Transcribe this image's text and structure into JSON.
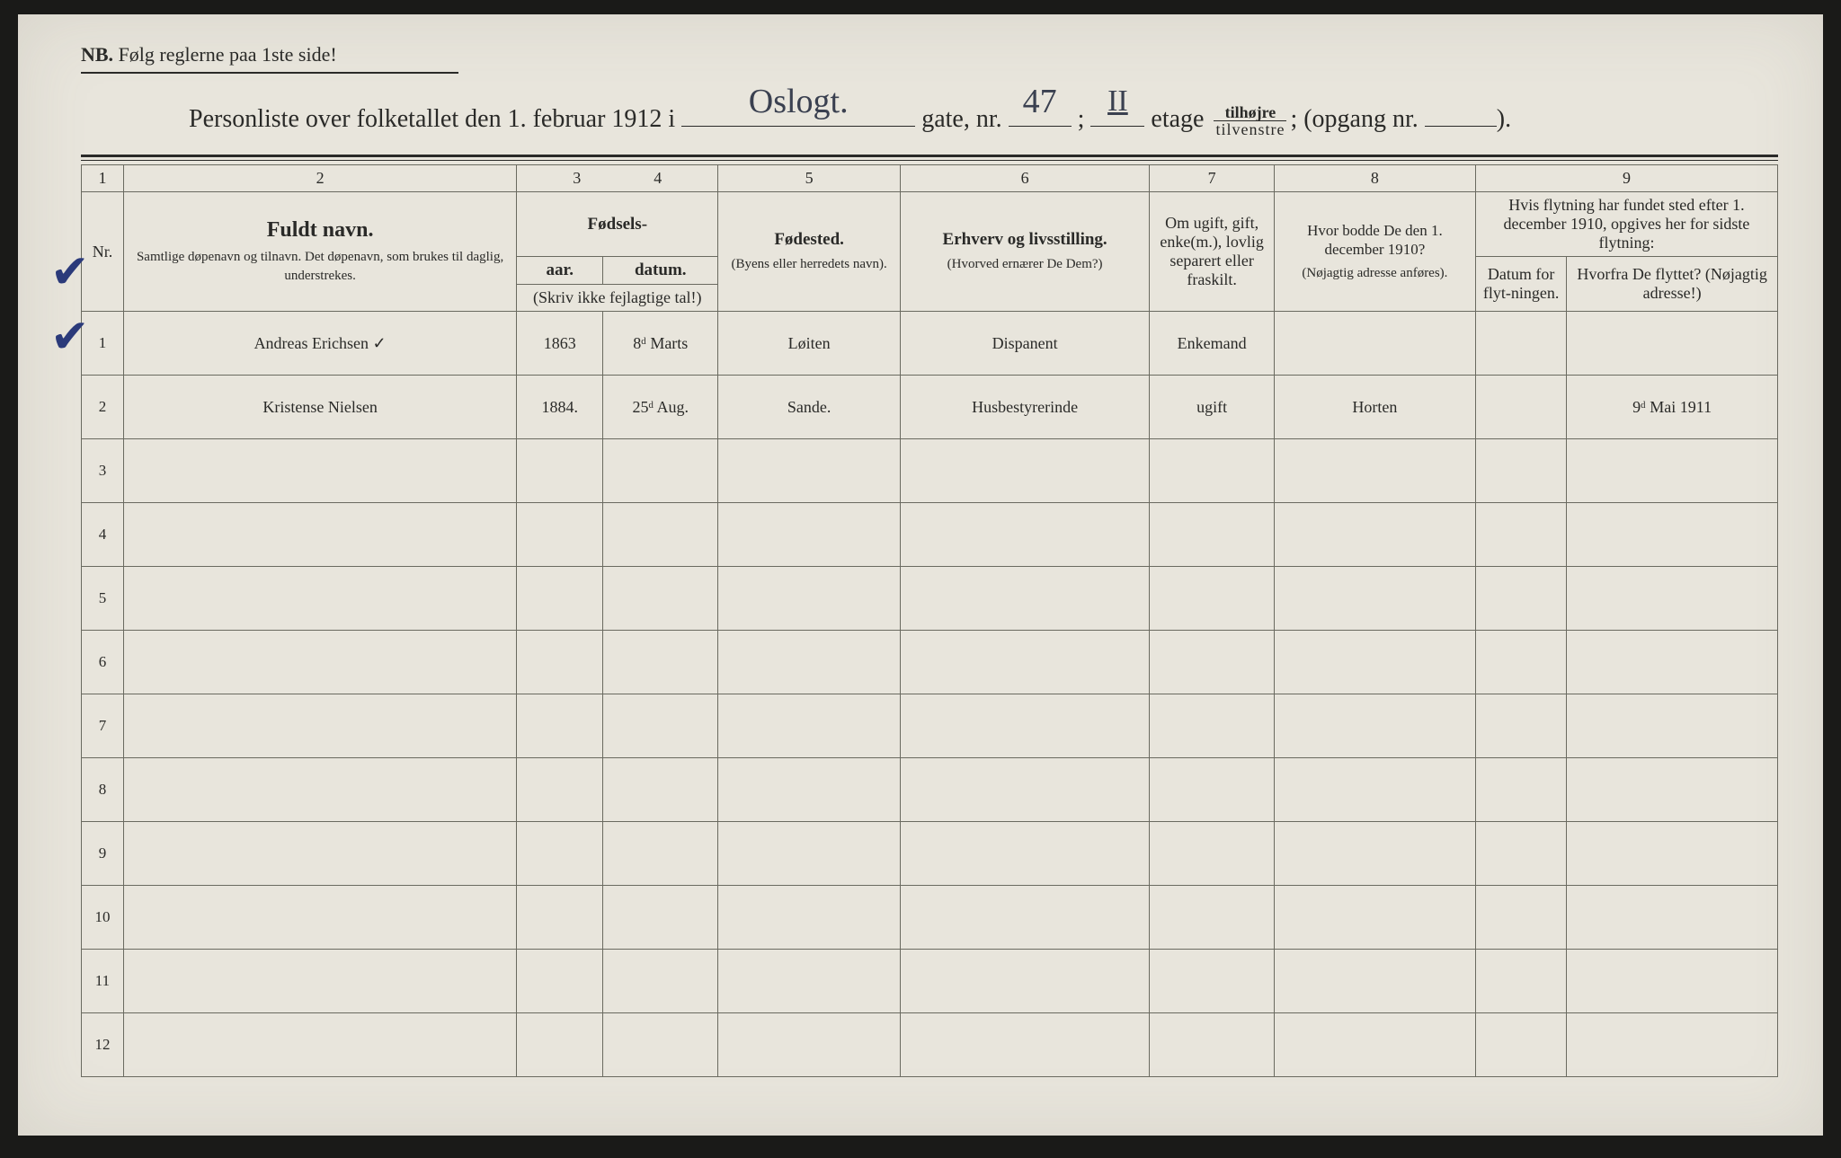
{
  "nb": {
    "prefix": "NB.",
    "text": "Følg reglerne paa 1ste side!"
  },
  "title": {
    "lead": "Personliste over folketallet den 1. februar 1912 i",
    "street_hand": "Oslogt.",
    "gate_label": "gate, nr.",
    "nr_hand": "47",
    "sep": ";",
    "floor_hand": "II",
    "etage": "etage",
    "frac_top": "tilhøjre",
    "frac_bot": "tilvenstre",
    "frac_sep": ";",
    "opgang": "(opgang nr.",
    "close": ")."
  },
  "colnums": [
    "1",
    "2",
    "3",
    "4",
    "5",
    "6",
    "7",
    "8",
    "9"
  ],
  "headers": {
    "nr": "Nr.",
    "name_big": "Fuldt navn.",
    "name_small": "Samtlige døpenavn og tilnavn. Det døpenavn, som brukes til daglig, understrekes.",
    "birth_top": "Fødsels-",
    "birth_year": "aar.",
    "birth_date": "datum.",
    "birth_note": "(Skriv ikke fejlagtige tal!)",
    "place": "Fødested.",
    "place_small": "(Byens eller herredets navn).",
    "occ": "Erhverv og livsstilling.",
    "occ_small": "(Hvorved ernærer De Dem?)",
    "marital": "Om ugift, gift, enke(m.), lovlig separert eller fraskilt.",
    "res1910": "Hvor bodde De den 1. december 1910?",
    "res_small": "(Nøjagtig adresse anføres).",
    "move_top": "Hvis flytning har fundet sted efter 1. december 1910, opgives her for sidste flytning:",
    "move_date": "Datum for flyt-ningen.",
    "move_from": "Hvorfra De flyttet? (Nøjagtig adresse!)"
  },
  "rows": [
    {
      "nr": "1",
      "name": "Andreas Erichsen ✓",
      "year": "1863",
      "date": "8ᵈ Marts",
      "place": "Løiten",
      "occ": "Dispanent",
      "marital": "Enkemand",
      "res1910": "",
      "mdate": "",
      "mfrom": ""
    },
    {
      "nr": "2",
      "name": "Kristense Nielsen",
      "year": "1884.",
      "date": "25ᵈ Aug.",
      "place": "Sande.",
      "occ": "Husbestyrerinde",
      "marital": "ugift",
      "res1910": "Horten",
      "mdate": "",
      "mfrom": "9ᵈ Mai 1911"
    },
    {
      "nr": "3"
    },
    {
      "nr": "4"
    },
    {
      "nr": "5"
    },
    {
      "nr": "6"
    },
    {
      "nr": "7"
    },
    {
      "nr": "8"
    },
    {
      "nr": "9"
    },
    {
      "nr": "10"
    },
    {
      "nr": "11"
    },
    {
      "nr": "12"
    }
  ],
  "style": {
    "paper_bg": "#e8e5dc",
    "ink": "#2a2a28",
    "hand_ink": "#3a4050",
    "check_ink": "#2b3a7a",
    "border": "#6a6a60"
  }
}
